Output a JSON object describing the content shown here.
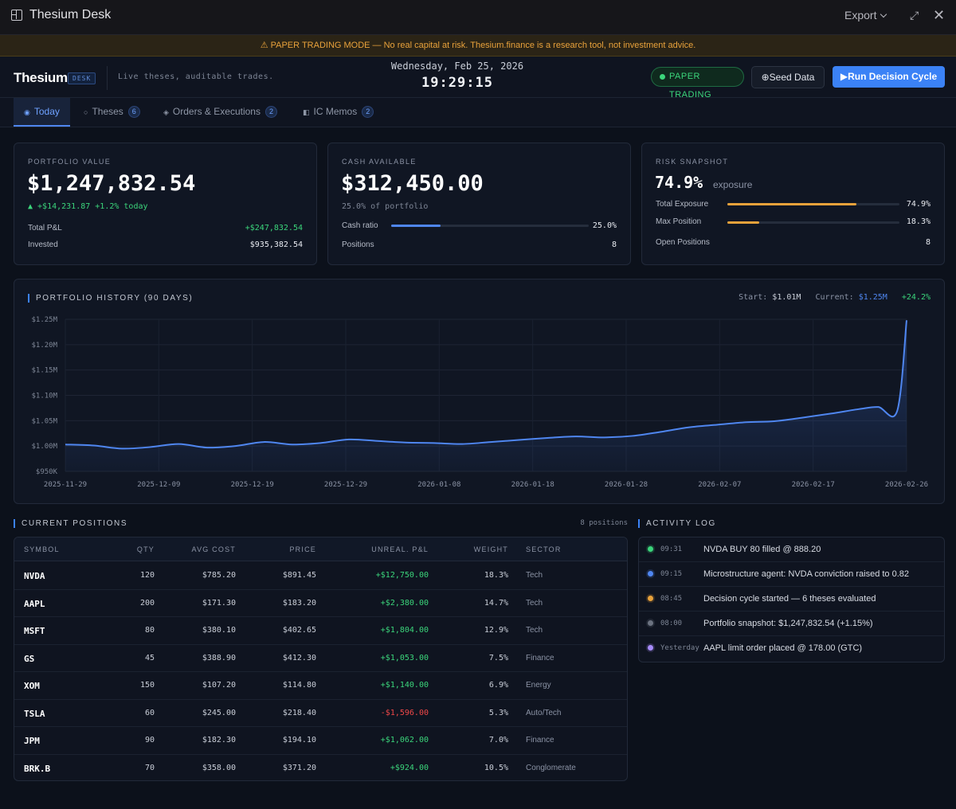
{
  "window": {
    "title": "Thesium Desk",
    "export_label": "Export"
  },
  "banner": {
    "text": "⚠ PAPER TRADING MODE — No real capital at risk. Thesium.finance is a research tool, not investment advice."
  },
  "header": {
    "brand": "Thesium",
    "brand_badge": "DESK",
    "tagline": "Live theses, auditable trades.",
    "date": "Wednesday, Feb 25, 2026",
    "time": "19:29:15",
    "mode_pill": "PAPER TRADING",
    "seed_button": "⊕Seed Data",
    "run_button": "▶Run Decision Cycle"
  },
  "tabs": [
    {
      "label": "Today",
      "icon": "◉",
      "badge": ""
    },
    {
      "label": "Theses",
      "icon": "○",
      "badge": "6"
    },
    {
      "label": "Orders & Executions",
      "icon": "◈",
      "badge": "2"
    },
    {
      "label": "IC Memos",
      "icon": "◧",
      "badge": "2"
    }
  ],
  "portfolio": {
    "label": "PORTFOLIO VALUE",
    "value": "$1,247,832.54",
    "change": "▲ +$14,231.87  +1.2% today",
    "total_pnl_label": "Total P&L",
    "total_pnl": "+$247,832.54",
    "invested_label": "Invested",
    "invested": "$935,382.54"
  },
  "cash": {
    "label": "CASH AVAILABLE",
    "value": "$312,450.00",
    "sub": "25.0% of portfolio",
    "ratio_label": "Cash ratio",
    "ratio_value": "25.0%",
    "ratio_fraction": 0.25,
    "positions_label": "Positions",
    "positions": "8"
  },
  "risk": {
    "label": "RISK SNAPSHOT",
    "value": "74.9%",
    "value_sub": "exposure",
    "total_exposure_label": "Total Exposure",
    "total_exposure": "74.9%",
    "total_exposure_fraction": 0.749,
    "max_position_label": "Max Position",
    "max_position": "18.3%",
    "max_position_fraction": 0.183,
    "open_positions_label": "Open Positions",
    "open_positions": "8",
    "accent": "#e9a23b"
  },
  "history": {
    "title": "PORTFOLIO HISTORY (90 DAYS)",
    "start_label": "Start:",
    "start_value": "$1.01M",
    "current_label": "Current:",
    "current_value": "$1.25M",
    "change": "+24.2%"
  },
  "chart_data": {
    "type": "area",
    "title": "PORTFOLIO HISTORY (90 DAYS)",
    "xlabel": "",
    "ylabel": "",
    "ylim": [
      950000,
      1250000
    ],
    "yticks": [
      950000,
      1000000,
      1050000,
      1100000,
      1150000,
      1200000,
      1250000
    ],
    "ytick_labels": [
      "$950K",
      "$1.00M",
      "$1.05M",
      "$1.10M",
      "$1.15M",
      "$1.20M",
      "$1.25M"
    ],
    "xtick_labels": [
      "2025-11-29",
      "2025-12-09",
      "2025-12-19",
      "2025-12-29",
      "2026-01-08",
      "2026-01-18",
      "2026-01-28",
      "2026-02-07",
      "2026-02-17",
      "2026-02-26"
    ],
    "x_days": [
      0,
      3,
      6,
      9,
      12,
      15,
      18,
      21,
      24,
      27,
      30,
      33,
      36,
      39,
      42,
      45,
      48,
      51,
      54,
      57,
      60,
      63,
      66,
      69,
      72,
      75,
      78,
      81,
      84,
      86,
      88,
      89
    ],
    "series": [
      {
        "name": "Portfolio value",
        "color": "#4f86f0",
        "values": [
          1003000,
          1001000,
          995000,
          998000,
          1004000,
          997000,
          1000000,
          1008000,
          1003000,
          1006000,
          1013000,
          1010000,
          1007000,
          1006000,
          1004000,
          1008000,
          1012000,
          1016000,
          1019000,
          1017000,
          1020000,
          1028000,
          1037000,
          1042000,
          1047000,
          1049000,
          1056000,
          1064000,
          1073000,
          1077000,
          1069000,
          1248000
        ]
      }
    ]
  },
  "positions": {
    "title": "CURRENT POSITIONS",
    "count": "8 positions",
    "headers": [
      "SYMBOL",
      "QTY",
      "AVG COST",
      "PRICE",
      "UNREAL. P&L",
      "WEIGHT",
      "SECTOR"
    ],
    "rows": [
      {
        "symbol": "NVDA",
        "qty": "120",
        "avg_cost": "$785.20",
        "price": "$891.45",
        "pnl": "+$12,750.00",
        "weight": "18.3%",
        "sector": "Tech"
      },
      {
        "symbol": "AAPL",
        "qty": "200",
        "avg_cost": "$171.30",
        "price": "$183.20",
        "pnl": "+$2,380.00",
        "weight": "14.7%",
        "sector": "Tech"
      },
      {
        "symbol": "MSFT",
        "qty": "80",
        "avg_cost": "$380.10",
        "price": "$402.65",
        "pnl": "+$1,804.00",
        "weight": "12.9%",
        "sector": "Tech"
      },
      {
        "symbol": "GS",
        "qty": "45",
        "avg_cost": "$388.90",
        "price": "$412.30",
        "pnl": "+$1,053.00",
        "weight": "7.5%",
        "sector": "Finance"
      },
      {
        "symbol": "XOM",
        "qty": "150",
        "avg_cost": "$107.20",
        "price": "$114.80",
        "pnl": "+$1,140.00",
        "weight": "6.9%",
        "sector": "Energy"
      },
      {
        "symbol": "TSLA",
        "qty": "60",
        "avg_cost": "$245.00",
        "price": "$218.40",
        "pnl": "-$1,596.00",
        "weight": "5.3%",
        "sector": "Auto/Tech"
      },
      {
        "symbol": "JPM",
        "qty": "90",
        "avg_cost": "$182.30",
        "price": "$194.10",
        "pnl": "+$1,062.00",
        "weight": "7.0%",
        "sector": "Finance"
      },
      {
        "symbol": "BRK.B",
        "qty": "70",
        "avg_cost": "$358.00",
        "price": "$371.20",
        "pnl": "+$924.00",
        "weight": "10.5%",
        "sector": "Conglomerate"
      }
    ]
  },
  "activity": {
    "title": "ACTIVITY LOG",
    "items": [
      {
        "time": "09:31",
        "message": "NVDA BUY 80 filled @ 888.20",
        "color": "#3bd57b"
      },
      {
        "time": "09:15",
        "message": "Microstructure agent: NVDA conviction raised to 0.82",
        "color": "#4f86f0"
      },
      {
        "time": "08:45",
        "message": "Decision cycle started — 6 theses evaluated",
        "color": "#e9a23b"
      },
      {
        "time": "08:00",
        "message": "Portfolio snapshot: $1,247,832.54 (+1.15%)",
        "color": "#6b7280"
      },
      {
        "time": "Yesterday",
        "message": "AAPL limit order placed @ 178.00 (GTC)",
        "color": "#a78bfa"
      }
    ]
  }
}
